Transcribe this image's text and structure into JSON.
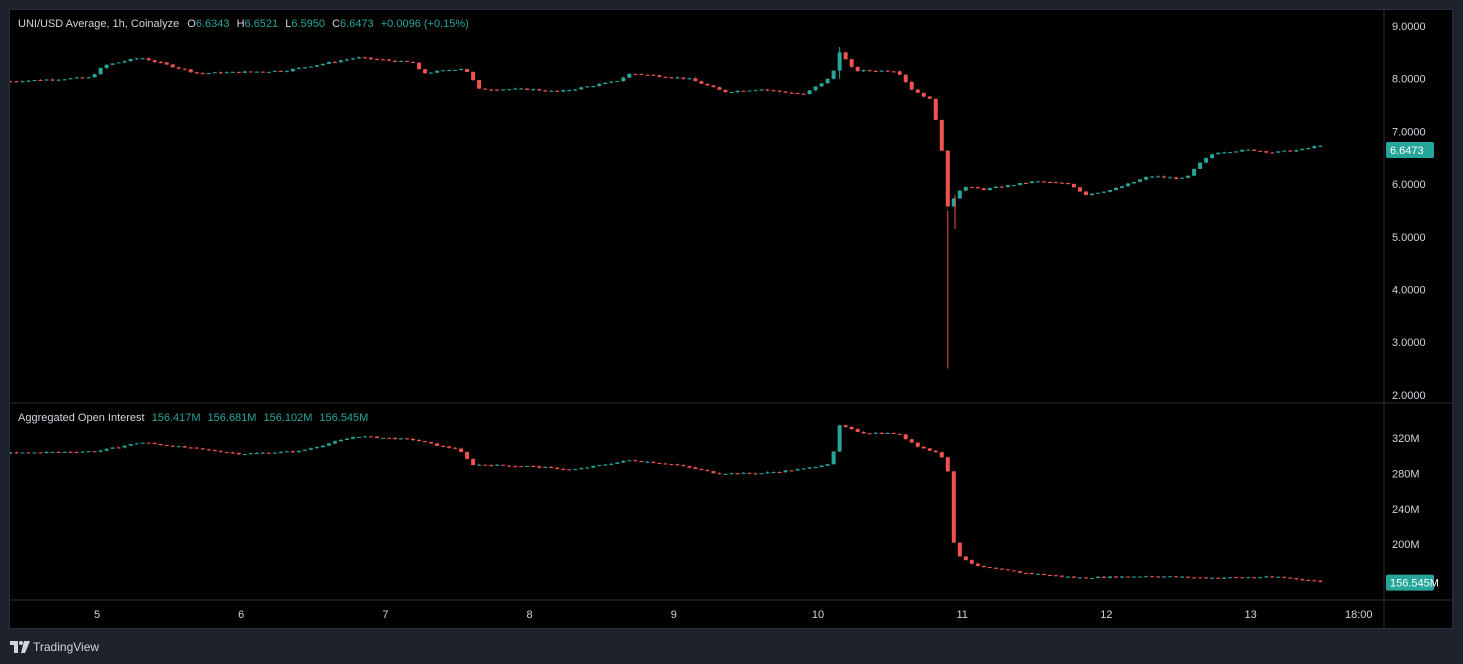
{
  "price_legend": {
    "symbol": "UNI/USD Average, 1h, Coinalyze",
    "open_label": "O",
    "open": "6.6343",
    "high_label": "H",
    "high": "6.6521",
    "low_label": "L",
    "low": "6.5950",
    "close_label": "C",
    "close": "6.6473",
    "change": "+0.0096 (+0.15%)"
  },
  "oi_legend": {
    "title": "Aggregated Open Interest",
    "open": "156.417M",
    "high": "156.681M",
    "low": "156.102M",
    "close": "156.545M"
  },
  "footer": {
    "brand": "TradingView"
  },
  "colors": {
    "up": "#26a69a",
    "down": "#ef5350",
    "background": "#000000",
    "frame": "#1e222d",
    "text": "#d1d4dc",
    "separator": "#2a2e39"
  },
  "chart_data": [
    {
      "type": "candlestick",
      "name": "price",
      "y_ticks": [
        "9.0000",
        "8.0000",
        "7.0000",
        "6.0000",
        "5.0000",
        "4.0000",
        "3.0000",
        "2.0000"
      ],
      "ylim": [
        2.0,
        9.0
      ],
      "last_value_label": "6.6473",
      "x_ticks": [
        "5",
        "6",
        "7",
        "8",
        "9",
        "10",
        "11",
        "12",
        "13",
        "18:00"
      ],
      "keypoints": [
        [
          4.4,
          7.95
        ],
        [
          4.95,
          8.02
        ],
        [
          5.05,
          8.25
        ],
        [
          5.3,
          8.4
        ],
        [
          5.7,
          8.1
        ],
        [
          6.3,
          8.15
        ],
        [
          6.8,
          8.4
        ],
        [
          7.2,
          8.3
        ],
        [
          7.25,
          8.1
        ],
        [
          7.55,
          8.2
        ],
        [
          7.65,
          7.8
        ],
        [
          8.0,
          7.8
        ],
        [
          8.2,
          7.75
        ],
        [
          8.6,
          7.95
        ],
        [
          8.7,
          8.1
        ],
        [
          9.1,
          8.0
        ],
        [
          9.35,
          7.75
        ],
        [
          9.6,
          7.8
        ],
        [
          9.9,
          7.7
        ],
        [
          10.1,
          8.05
        ],
        [
          10.14,
          8.55
        ],
        [
          10.25,
          8.15
        ],
        [
          10.55,
          8.15
        ],
        [
          10.65,
          7.8
        ],
        [
          10.78,
          7.6
        ],
        [
          10.85,
          6.9
        ],
        [
          10.89,
          5.55
        ],
        [
          11.0,
          5.95
        ],
        [
          11.15,
          5.9
        ],
        [
          11.5,
          6.05
        ],
        [
          11.75,
          6.0
        ],
        [
          11.85,
          5.8
        ],
        [
          12.05,
          5.9
        ],
        [
          12.3,
          6.15
        ],
        [
          12.55,
          6.1
        ],
        [
          12.65,
          6.4
        ],
        [
          12.75,
          6.6
        ],
        [
          13.0,
          6.65
        ],
        [
          13.15,
          6.6
        ],
        [
          13.35,
          6.65
        ],
        [
          13.5,
          6.75
        ],
        [
          13.52,
          6.6
        ]
      ],
      "spikes": [
        {
          "x": 10.9,
          "low": 2.5,
          "high": 5.5
        },
        {
          "x": 10.95,
          "low": 5.15,
          "high": 5.8
        },
        {
          "x": 10.15,
          "low": 8.0,
          "high": 8.6
        }
      ]
    },
    {
      "type": "candlestick",
      "name": "Aggregated Open Interest",
      "y_ticks": [
        "320M",
        "280M",
        "240M",
        "200M"
      ],
      "ylim": [
        150,
        340
      ],
      "last_value_label": "156.545M",
      "keypoints": [
        [
          4.4,
          303
        ],
        [
          5.0,
          305
        ],
        [
          5.3,
          315
        ],
        [
          6.0,
          302
        ],
        [
          6.4,
          305
        ],
        [
          6.8,
          322
        ],
        [
          7.2,
          318
        ],
        [
          7.4,
          310
        ],
        [
          7.5,
          308
        ],
        [
          7.6,
          290
        ],
        [
          8.0,
          288
        ],
        [
          8.3,
          284
        ],
        [
          8.7,
          295
        ],
        [
          9.0,
          290
        ],
        [
          9.3,
          280
        ],
        [
          9.6,
          280
        ],
        [
          9.9,
          285
        ],
        [
          10.1,
          292
        ],
        [
          10.13,
          335
        ],
        [
          10.3,
          326
        ],
        [
          10.55,
          325
        ],
        [
          10.7,
          310
        ],
        [
          10.85,
          302
        ],
        [
          10.9,
          283
        ],
        [
          10.92,
          230
        ],
        [
          10.95,
          190
        ],
        [
          11.1,
          175
        ],
        [
          11.4,
          168
        ],
        [
          11.8,
          162
        ],
        [
          12.3,
          164
        ],
        [
          12.7,
          162
        ],
        [
          13.2,
          163
        ],
        [
          13.52,
          157
        ]
      ]
    }
  ]
}
